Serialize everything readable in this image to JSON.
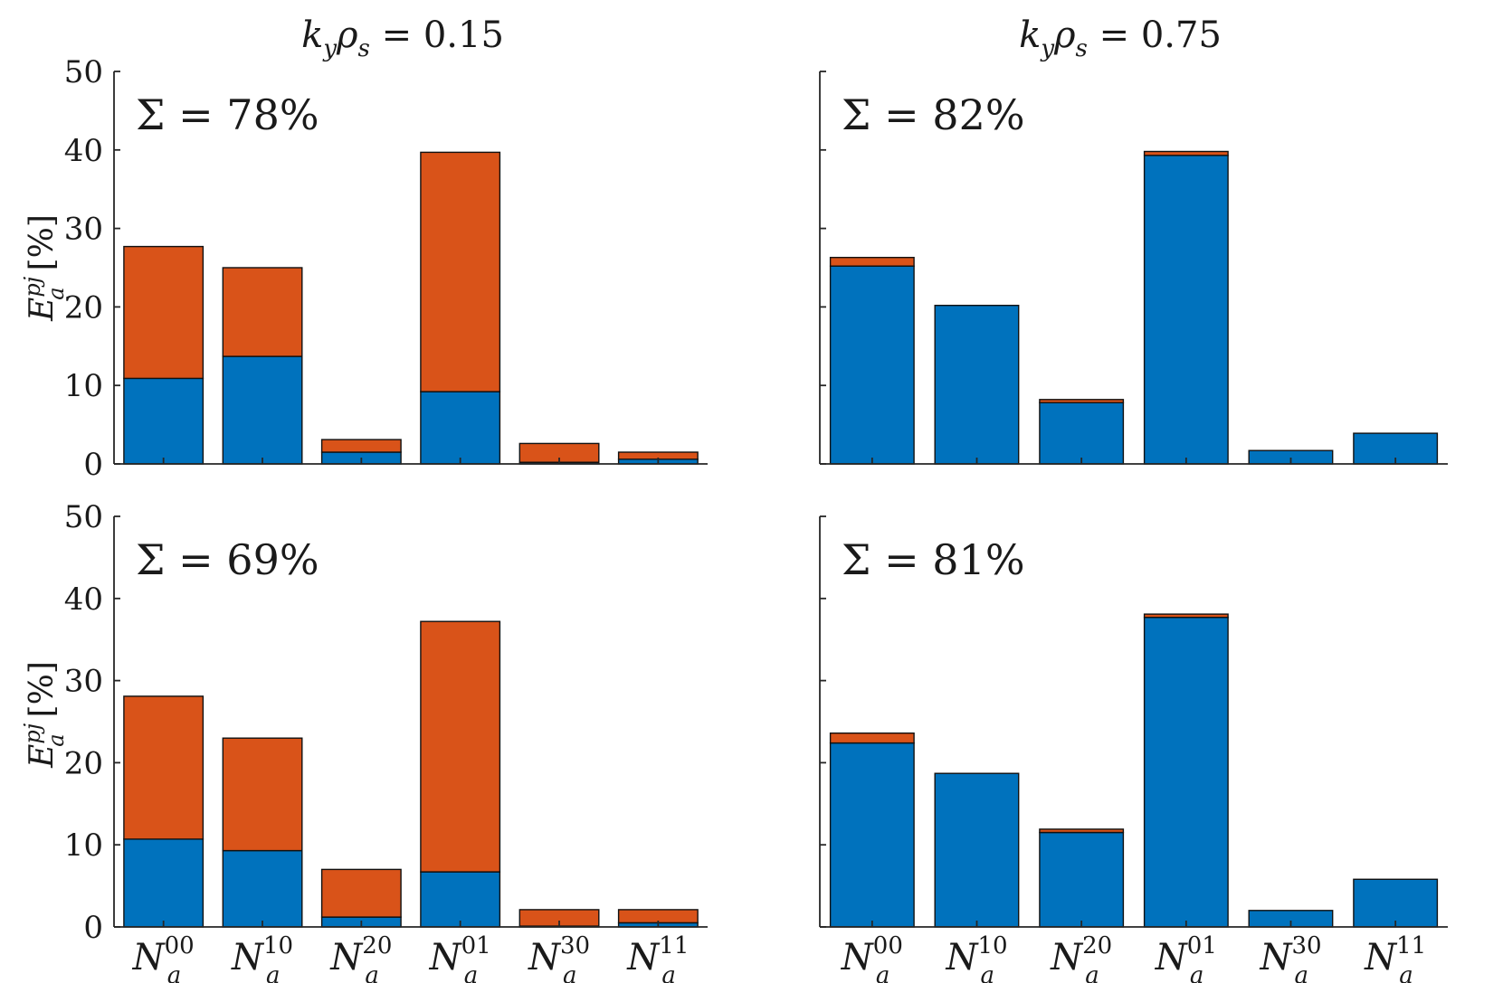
{
  "figure": {
    "col_titles": [
      {
        "k": "k",
        "k_sub": "y",
        "rho": "ρ",
        "rho_sub": "s",
        "rest": " = 0.15"
      },
      {
        "k": "k",
        "k_sub": "y",
        "rho": "ρ",
        "rho_sub": "s",
        "rest": " = 0.75"
      }
    ],
    "ylabel": {
      "main": "E",
      "sup": "pj",
      "sub": "a",
      "unit": "[%]"
    },
    "colors": {
      "blue": "#0072bd",
      "orange": "#d95319",
      "axis": "#262626"
    }
  },
  "chart_data": [
    {
      "type": "bar",
      "stacked": true,
      "position": "top-left",
      "title": "k_y ρ_s = 0.15",
      "annotation": "Σ = 78%",
      "ylabel": "E_a^{pj} [%]",
      "ylim": [
        0,
        50
      ],
      "yticks": [
        0,
        10,
        20,
        30,
        40,
        50
      ],
      "categories": [
        "N_a^00",
        "N_a^10",
        "N_a^20",
        "N_a^01",
        "N_a^30",
        "N_a^11"
      ],
      "series": [
        {
          "name": "blue",
          "values": [
            10.9,
            13.7,
            1.5,
            9.2,
            0.2,
            0.6
          ]
        },
        {
          "name": "orange",
          "values": [
            16.8,
            11.3,
            1.6,
            30.5,
            2.4,
            0.9
          ]
        }
      ]
    },
    {
      "type": "bar",
      "stacked": true,
      "position": "top-right",
      "title": "k_y ρ_s = 0.75",
      "annotation": "Σ = 82%",
      "ylim": [
        0,
        50
      ],
      "yticks": [
        0,
        10,
        20,
        30,
        40,
        50
      ],
      "categories": [
        "N_a^00",
        "N_a^10",
        "N_a^20",
        "N_a^01",
        "N_a^30",
        "N_a^11"
      ],
      "series": [
        {
          "name": "blue",
          "values": [
            25.2,
            20.2,
            7.8,
            39.3,
            1.7,
            3.9
          ]
        },
        {
          "name": "orange",
          "values": [
            1.1,
            0.0,
            0.4,
            0.5,
            0.0,
            0.0
          ]
        }
      ]
    },
    {
      "type": "bar",
      "stacked": true,
      "position": "bottom-left",
      "annotation": "Σ = 69%",
      "ylabel": "E_a^{pj} [%]",
      "ylim": [
        0,
        50
      ],
      "yticks": [
        0,
        10,
        20,
        30,
        40,
        50
      ],
      "categories": [
        "N_a^00",
        "N_a^10",
        "N_a^20",
        "N_a^01",
        "N_a^30",
        "N_a^11"
      ],
      "series": [
        {
          "name": "blue",
          "values": [
            10.7,
            9.3,
            1.2,
            6.7,
            0.1,
            0.5
          ]
        },
        {
          "name": "orange",
          "values": [
            17.4,
            13.7,
            5.8,
            30.5,
            2.0,
            1.6
          ]
        }
      ]
    },
    {
      "type": "bar",
      "stacked": true,
      "position": "bottom-right",
      "annotation": "Σ = 81%",
      "ylim": [
        0,
        50
      ],
      "yticks": [
        0,
        10,
        20,
        30,
        40,
        50
      ],
      "categories": [
        "N_a^00",
        "N_a^10",
        "N_a^20",
        "N_a^01",
        "N_a^30",
        "N_a^11"
      ],
      "series": [
        {
          "name": "blue",
          "values": [
            22.4,
            18.7,
            11.5,
            37.7,
            2.0,
            5.8
          ]
        },
        {
          "name": "orange",
          "values": [
            1.2,
            0.0,
            0.4,
            0.4,
            0.0,
            0.0
          ]
        }
      ]
    }
  ],
  "category_labels": [
    {
      "main": "N",
      "sup": "00",
      "sub": "a"
    },
    {
      "main": "N",
      "sup": "10",
      "sub": "a"
    },
    {
      "main": "N",
      "sup": "20",
      "sub": "a"
    },
    {
      "main": "N",
      "sup": "01",
      "sub": "a"
    },
    {
      "main": "N",
      "sup": "30",
      "sub": "a"
    },
    {
      "main": "N",
      "sup": "11",
      "sub": "a"
    }
  ],
  "tick_labels": [
    "0",
    "10",
    "20",
    "30",
    "40",
    "50"
  ]
}
